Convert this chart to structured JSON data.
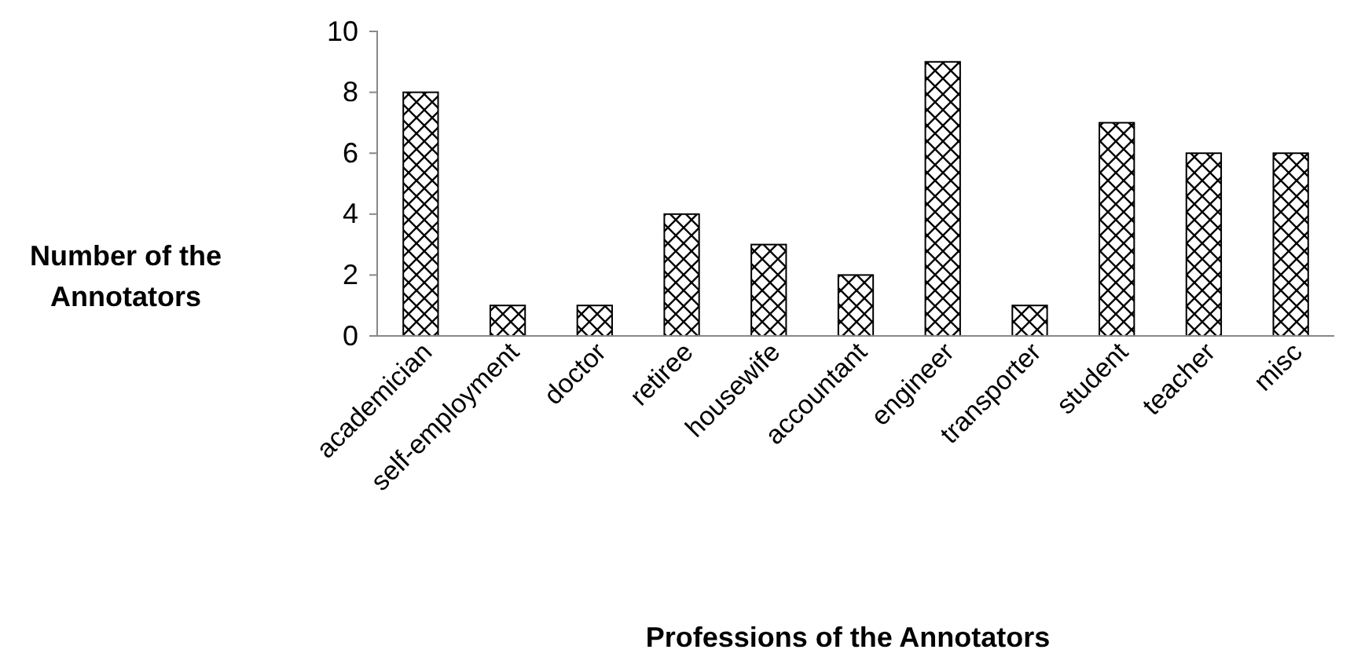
{
  "chart_data": {
    "type": "bar",
    "xlabel": "Professions of the Annotators",
    "ylabel": "Number of the Annotators",
    "categories": [
      "academician",
      "self-employment",
      "doctor",
      "retiree",
      "housewife",
      "accountant",
      "engineer",
      "transporter",
      "student",
      "teacher",
      "misc"
    ],
    "values": [
      8,
      1,
      1,
      4,
      3,
      2,
      9,
      1,
      7,
      6,
      6
    ],
    "color": "#000000",
    "ylim": [
      0,
      10
    ],
    "yticks": [
      0,
      2,
      4,
      6,
      8,
      10
    ]
  }
}
